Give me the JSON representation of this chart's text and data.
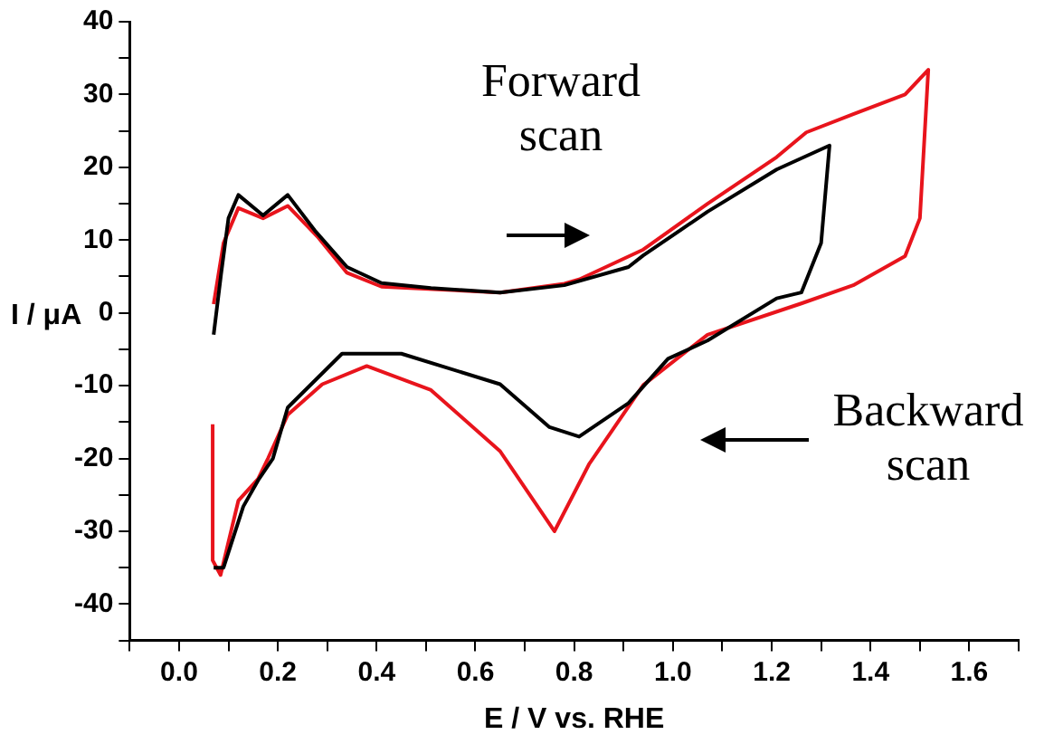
{
  "chart_data": {
    "type": "line",
    "xlabel": "E / V vs. RHE",
    "ylabel": "I / μA",
    "annotations": [
      "Forward scan",
      "Backward scan"
    ],
    "xlim": [
      -0.1,
      1.7
    ],
    "xticks": [
      {
        "value": -0.1,
        "label": null
      },
      {
        "value": 0,
        "label": "0.0"
      },
      {
        "value": 0.1,
        "label": null
      },
      {
        "value": 0.2,
        "label": "0.2"
      },
      {
        "value": 0.3,
        "label": null
      },
      {
        "value": 0.4,
        "label": "0.4"
      },
      {
        "value": 0.5,
        "label": null
      },
      {
        "value": 0.6,
        "label": "0.6"
      },
      {
        "value": 0.7,
        "label": null
      },
      {
        "value": 0.8,
        "label": "0.8"
      },
      {
        "value": 0.9,
        "label": null
      },
      {
        "value": 1,
        "label": "1.0"
      },
      {
        "value": 1.1,
        "label": null
      },
      {
        "value": 1.2,
        "label": "1.2"
      },
      {
        "value": 1.3,
        "label": null
      },
      {
        "value": 1.4,
        "label": "1.4"
      },
      {
        "value": 1.5,
        "label": null
      },
      {
        "value": 1.6,
        "label": "1.6"
      },
      {
        "value": 1.7,
        "label": null
      }
    ],
    "ylim": [
      -45,
      40
    ],
    "yticks": [
      {
        "value": -45,
        "label": null
      },
      -40,
      {
        "value": -35,
        "label": null
      },
      -30,
      {
        "value": -25,
        "label": null
      },
      -20,
      {
        "value": -15,
        "label": null
      },
      -10,
      {
        "value": -5,
        "label": null
      },
      0,
      {
        "value": 5,
        "label": null
      },
      10,
      {
        "value": 15,
        "label": null
      },
      20,
      {
        "value": 25,
        "label": null
      },
      30,
      {
        "value": 35,
        "label": null
      },
      40
    ],
    "grid": false,
    "legend": false,
    "marker": "none",
    "line_style": "solid",
    "series": [
      {
        "color": "#000000",
        "x": [
          0.07,
          0.085,
          0.1,
          0.12,
          0.17,
          0.22,
          0.275,
          0.34,
          0.41,
          0.51,
          0.65,
          0.78,
          0.91,
          0.94,
          1.07,
          1.21,
          1.317,
          1.3,
          1.26,
          1.21,
          1.07,
          0.99,
          0.91,
          0.81,
          0.75,
          0.65,
          0.45,
          0.33,
          0.22,
          0.19,
          0.16,
          0.13,
          0.09,
          0.07
        ],
        "values": [
          -3,
          5.3,
          13,
          16.2,
          13.4,
          16.2,
          11.3,
          6.3,
          4.1,
          3.4,
          2.8,
          3.8,
          6.3,
          7.9,
          13.9,
          19.7,
          23,
          9.6,
          2.8,
          2,
          -3.8,
          -6.3,
          -12.4,
          -17,
          -15.7,
          -9.8,
          -5.6,
          -5.6,
          -13,
          -20,
          -23,
          -26.6,
          -35,
          -35
        ]
      },
      {
        "color": "#e8141c",
        "x": [
          0.07,
          0.09,
          0.12,
          0.17,
          0.22,
          0.28,
          0.34,
          0.41,
          0.65,
          0.78,
          0.81,
          0.94,
          1.07,
          1.21,
          1.27,
          1.365,
          1.47,
          1.517,
          1.5,
          1.47,
          1.365,
          1.26,
          1.07,
          0.94,
          0.83,
          0.76,
          0.65,
          0.51,
          0.38,
          0.29,
          0.22,
          0.18,
          0.16,
          0.12,
          0.084,
          0.068,
          0.068
        ],
        "values": [
          1.2,
          9.6,
          14.4,
          13,
          14.7,
          10.5,
          5.5,
          3.6,
          2.8,
          4,
          4.6,
          8.7,
          15,
          21.4,
          24.8,
          27.3,
          30,
          33.4,
          13,
          7.8,
          3.8,
          1.3,
          -3,
          -9.9,
          -20.8,
          -30,
          -19,
          -10.6,
          -7.3,
          -9.8,
          -14,
          -20,
          -22.8,
          -25.8,
          -36,
          -34,
          -15.3
        ]
      }
    ]
  }
}
